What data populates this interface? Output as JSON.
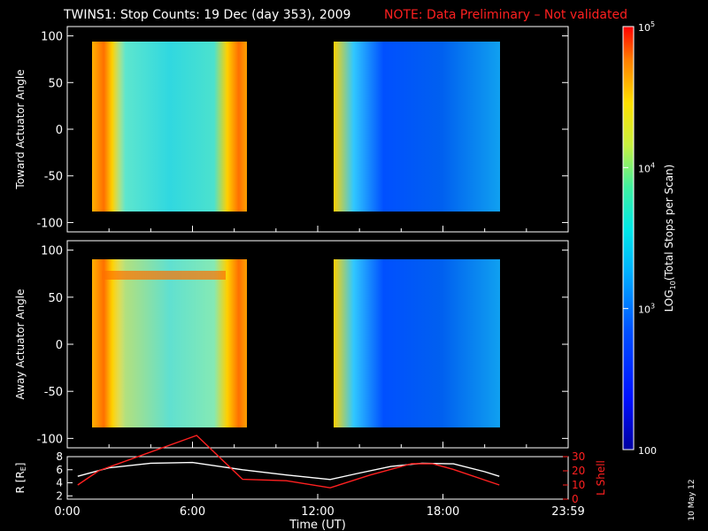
{
  "header": {
    "title": "TWINS1: Stop Counts: 19 Dec (day 353), 2009",
    "note": "NOTE: Data Preliminary – Not validated"
  },
  "side_note": "10 May 12",
  "colors": {
    "note": "#ff2020",
    "r_line": "#ffffff",
    "l_line": "#ff2020"
  },
  "chart_data": [
    {
      "type": "heatmap",
      "panel": "toward",
      "ylabel": "Toward Actuator Angle",
      "ylim": [
        -110,
        110
      ],
      "yticks": [
        "100",
        "50",
        "0",
        "-50",
        "-100"
      ],
      "xlim_hours": [
        0,
        24
      ],
      "data_blocks": [
        {
          "x_start_hours": 1.0,
          "x_end_hours": 8.45,
          "y_range": [
            -88,
            90
          ],
          "tone": "cyan-green with yellow-orange edges"
        },
        {
          "x_start_hours": 12.6,
          "x_end_hours": 20.7,
          "y_range": [
            -88,
            90
          ],
          "tone": "blue-cyan with yellow-orange leading edge"
        }
      ]
    },
    {
      "type": "heatmap",
      "panel": "away",
      "ylabel": "Away Actuator Angle",
      "ylim": [
        -110,
        110
      ],
      "yticks": [
        "100",
        "50",
        "0",
        "-50",
        "-100"
      ],
      "xlim_hours": [
        0,
        24
      ],
      "data_blocks": [
        {
          "x_start_hours": 1.0,
          "x_end_hours": 8.45,
          "y_range": [
            -88,
            90
          ],
          "tone": "yellow-cyan with orange edges"
        },
        {
          "x_start_hours": 12.6,
          "x_end_hours": 20.7,
          "y_range": [
            -88,
            90
          ],
          "tone": "blue-cyan with yellow-orange leading edge"
        }
      ]
    },
    {
      "type": "line",
      "panel": "orbit",
      "xlabel": "Time (UT)",
      "xticks": [
        "0:00",
        "6:00",
        "12:00",
        "18:00",
        "23:59"
      ],
      "ylabel_left": "R [R",
      "ylabel_left_sub": "E",
      "ylabel_left_end": "]",
      "ylim_left": [
        1.5,
        8
      ],
      "yticks_left": [
        "8",
        "6",
        "4",
        "2"
      ],
      "ylabel_right": "L Shell",
      "ylim_right": [
        0,
        30
      ],
      "yticks_right": [
        "30",
        "20",
        "10",
        "0"
      ],
      "series": [
        {
          "axis": "left",
          "x_hours": [
            0.5,
            2,
            4,
            6,
            8.4,
            10.5,
            12.6,
            14,
            15.5,
            17,
            18.5,
            20,
            20.7
          ],
          "values": [
            5.0,
            6.3,
            7.0,
            7.1,
            6.0,
            5.2,
            4.5,
            5.5,
            6.5,
            7.0,
            6.9,
            5.7,
            5.0
          ]
        },
        {
          "axis": "right",
          "x_hours": [
            0.5,
            1.5,
            6.2,
            8.4,
            10.5,
            12.6,
            14.5,
            16.5,
            17.5,
            18.5,
            20.7
          ],
          "values": [
            10,
            20,
            45,
            14,
            13,
            8,
            17,
            25,
            25,
            21,
            10
          ]
        }
      ]
    },
    {
      "type": "heatmap",
      "panel": "colorbar",
      "title_prefix": "LOG",
      "title_sub": "10",
      "title_suffix": "(Total Stops per Scan)",
      "scale": "log",
      "range": [
        100,
        100000
      ],
      "ticks": [
        {
          "value": 100000,
          "base": "10",
          "exp": "5"
        },
        {
          "value": 10000,
          "base": "10",
          "exp": "4"
        },
        {
          "value": 1000,
          "base": "10",
          "exp": "3"
        },
        {
          "value": 100,
          "label": "100"
        }
      ]
    }
  ]
}
